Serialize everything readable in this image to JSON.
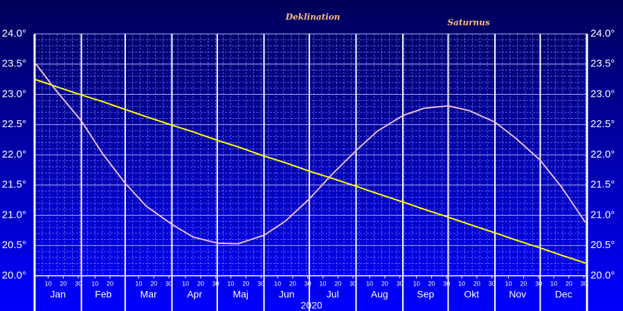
{
  "chart_data": {
    "type": "line",
    "title": "Deklination",
    "subtitle": "Saturnus",
    "xlabel": "2020",
    "x": [
      "2020-01-01",
      "2020-01-15",
      "2020-02-01",
      "2020-02-15",
      "2020-03-01",
      "2020-03-15",
      "2020-04-01",
      "2020-04-15",
      "2020-05-01",
      "2020-05-15",
      "2020-06-01",
      "2020-06-15",
      "2020-07-01",
      "2020-07-15",
      "2020-08-01",
      "2020-08-15",
      "2020-09-01",
      "2020-09-15",
      "2020-10-01",
      "2020-10-15",
      "2020-11-01",
      "2020-11-15",
      "2020-12-01",
      "2020-12-15",
      "2020-12-31"
    ],
    "series": [
      {
        "color": "#ffff00",
        "values": [
          23.25,
          23.13,
          22.99,
          22.88,
          22.75,
          22.63,
          22.49,
          22.38,
          22.24,
          22.13,
          21.98,
          21.87,
          21.73,
          21.62,
          21.48,
          21.36,
          21.22,
          21.1,
          20.97,
          20.85,
          20.71,
          20.59,
          20.46,
          20.34,
          20.21
        ]
      },
      {
        "color": "#f0c0e0",
        "values": [
          23.53,
          23.07,
          22.56,
          22.02,
          21.53,
          21.15,
          20.85,
          20.64,
          20.54,
          20.53,
          20.67,
          20.9,
          21.27,
          21.65,
          22.07,
          22.39,
          22.65,
          22.77,
          22.81,
          22.73,
          22.54,
          22.27,
          21.91,
          21.47,
          20.88
        ]
      }
    ],
    "months": [
      "Jan",
      "Feb",
      "Mar",
      "Apr",
      "Maj",
      "Jun",
      "Jul",
      "Aug",
      "Sep",
      "Okt",
      "Nov",
      "Dec"
    ],
    "xlim": [
      "2020-01-01",
      "2020-12-31"
    ],
    "xticks": [
      {
        "value": "2020-01-10",
        "label": "10"
      },
      {
        "value": "2020-01-20",
        "label": "20"
      },
      {
        "value": "2020-01-30",
        "label": "30"
      },
      {
        "value": "2020-02-10",
        "label": "10"
      },
      {
        "value": "2020-02-20",
        "label": "20"
      },
      {
        "value": "2020-03-10",
        "label": "10"
      },
      {
        "value": "2020-03-20",
        "label": "20"
      },
      {
        "value": "2020-03-30",
        "label": "30"
      },
      {
        "value": "2020-04-10",
        "label": "10"
      },
      {
        "value": "2020-04-20",
        "label": "20"
      },
      {
        "value": "2020-04-30",
        "label": "30"
      },
      {
        "value": "2020-05-10",
        "label": "10"
      },
      {
        "value": "2020-05-20",
        "label": "20"
      },
      {
        "value": "2020-05-30",
        "label": "30"
      },
      {
        "value": "2020-06-10",
        "label": "10"
      },
      {
        "value": "2020-06-20",
        "label": "20"
      },
      {
        "value": "2020-06-30",
        "label": "30"
      },
      {
        "value": "2020-07-10",
        "label": "10"
      },
      {
        "value": "2020-07-20",
        "label": "20"
      },
      {
        "value": "2020-07-30",
        "label": "30"
      },
      {
        "value": "2020-08-10",
        "label": "10"
      },
      {
        "value": "2020-08-20",
        "label": "20"
      },
      {
        "value": "2020-08-30",
        "label": "30"
      },
      {
        "value": "2020-09-10",
        "label": "10"
      },
      {
        "value": "2020-09-20",
        "label": "20"
      },
      {
        "value": "2020-09-30",
        "label": "30"
      },
      {
        "value": "2020-10-10",
        "label": "10"
      },
      {
        "value": "2020-10-20",
        "label": "20"
      },
      {
        "value": "2020-10-30",
        "label": "30"
      },
      {
        "value": "2020-11-10",
        "label": "10"
      },
      {
        "value": "2020-11-20",
        "label": "20"
      },
      {
        "value": "2020-11-30",
        "label": "30"
      },
      {
        "value": "2020-12-10",
        "label": "10"
      },
      {
        "value": "2020-12-20",
        "label": "20"
      },
      {
        "value": "2020-12-30",
        "label": "30"
      }
    ],
    "ylim": [
      20,
      24
    ],
    "yticks": [
      {
        "value": 20,
        "label": "20.0°"
      },
      {
        "value": 20.5,
        "label": "20.5°"
      },
      {
        "value": 21,
        "label": "21.0°"
      },
      {
        "value": 21.5,
        "label": "21.5°"
      },
      {
        "value": 22,
        "label": "22.0°"
      },
      {
        "value": 22.5,
        "label": "22.5°"
      },
      {
        "value": 23,
        "label": "23.0°"
      },
      {
        "value": 23.5,
        "label": "23.5°"
      },
      {
        "value": 24,
        "label": "24.0°"
      }
    ],
    "grid": true
  }
}
